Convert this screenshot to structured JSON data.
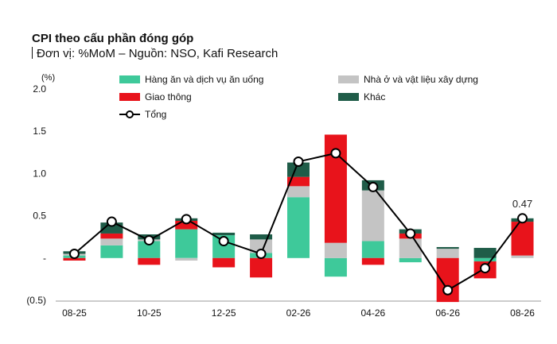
{
  "chart_data": {
    "type": "bar",
    "title": "CPI theo cấu phần đóng góp",
    "subtitle": "Đơn vị: %MoM – Nguồn: NSO, Kafi Research",
    "y_unit": "(%)",
    "ylim": [
      -0.5,
      2.0
    ],
    "y_ticks": [
      -0.5,
      0,
      0.5,
      1.0,
      1.5,
      2.0
    ],
    "y_tick_labels": [
      "(0.5)",
      "-",
      "0.5",
      "1.0",
      "1.5",
      "2.0"
    ],
    "categories": [
      "08-25",
      "09-25",
      "10-25",
      "11-25",
      "12-25",
      "01-26",
      "02-26",
      "03-26",
      "04-26",
      "05-26",
      "06-26",
      "07-26",
      "08-26"
    ],
    "x_tick_labels": [
      "08-25",
      "",
      "10-25",
      "",
      "12-25",
      "",
      "02-26",
      "",
      "04-26",
      "",
      "06-26",
      "",
      "08-26"
    ],
    "series": [
      {
        "name": "Hàng ăn và dịch vụ ăn uống",
        "color": "#3ec99a",
        "values": [
          0.03,
          0.15,
          0.2,
          0.34,
          0.27,
          0.06,
          0.72,
          -0.22,
          0.2,
          -0.05,
          0.0,
          -0.04,
          0.0
        ]
      },
      {
        "name": "Nhà ở và vật liệu xây dựng",
        "color": "#c4c4c4",
        "values": [
          0.02,
          0.08,
          0.02,
          -0.03,
          0.0,
          0.16,
          0.13,
          0.18,
          0.6,
          0.23,
          0.11,
          0.0,
          0.03
        ]
      },
      {
        "name": "Giao thông",
        "color": "#e8131b",
        "values": [
          -0.03,
          0.06,
          -0.08,
          0.1,
          -0.11,
          -0.23,
          0.11,
          1.28,
          -0.08,
          0.06,
          -0.52,
          -0.2,
          0.4
        ]
      },
      {
        "name": "Khác",
        "color": "#1f5c48",
        "values": [
          0.03,
          0.13,
          0.06,
          0.03,
          0.03,
          0.06,
          0.17,
          0.0,
          0.12,
          0.05,
          0.02,
          0.12,
          0.04
        ]
      }
    ],
    "total": {
      "name": "Tổng",
      "values": [
        0.05,
        0.43,
        0.21,
        0.46,
        0.2,
        0.05,
        1.14,
        1.24,
        0.84,
        0.29,
        -0.38,
        -0.12,
        0.47
      ]
    },
    "annotations": [
      {
        "category": "08-26",
        "text": "0.47"
      }
    ],
    "legend_placement": "top",
    "grid": false
  }
}
